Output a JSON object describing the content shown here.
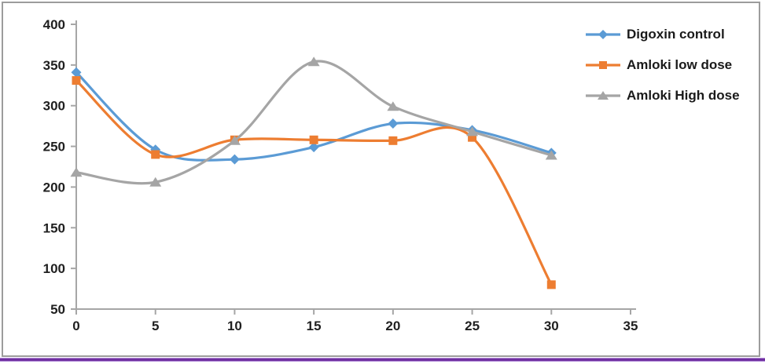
{
  "frame": {
    "border_color": "#9c9c9c",
    "accent_line_color": "#7030A0",
    "background": "#ffffff"
  },
  "chart_data": {
    "type": "line",
    "smooth": true,
    "title": "",
    "xlabel": "",
    "ylabel": "",
    "x": [
      0,
      5,
      10,
      15,
      20,
      25,
      30
    ],
    "series": [
      {
        "name": "Digoxin control",
        "marker": "diamond",
        "color": "#5B9BD5",
        "values": [
          341,
          246,
          234,
          249,
          278,
          270,
          242
        ]
      },
      {
        "name": "Amloki low dose",
        "marker": "square",
        "color": "#ED7D31",
        "values": [
          331,
          240,
          258,
          258,
          257,
          261,
          80
        ]
      },
      {
        "name": "Amloki High dose",
        "marker": "triangle",
        "color": "#A5A5A5",
        "values": [
          218,
          206,
          257,
          354,
          299,
          268,
          239
        ]
      }
    ],
    "xlim": [
      0,
      35
    ],
    "ylim": [
      50,
      400
    ],
    "x_ticks": [
      "0",
      "5",
      "10",
      "15",
      "20",
      "25",
      "30",
      "35"
    ],
    "y_ticks": [
      "400",
      "350",
      "300",
      "250",
      "200",
      "150",
      "100",
      "50"
    ],
    "grid": false,
    "legend_position": "top-right",
    "axis_color": "#a6a6a6",
    "tick_label_color": "#1f1f1f"
  }
}
